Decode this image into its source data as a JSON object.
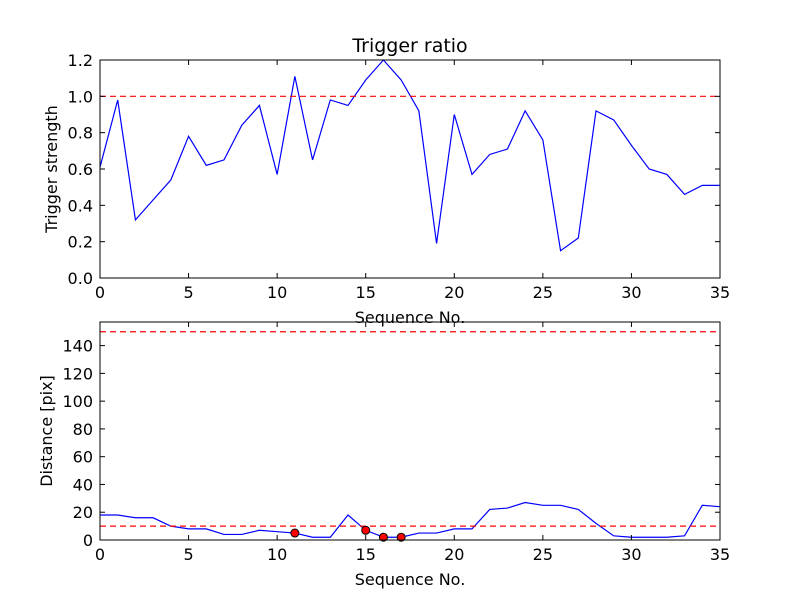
{
  "chart_data": [
    {
      "type": "line",
      "title": "Trigger ratio",
      "xlabel": "Sequence No.",
      "ylabel": "Trigger strength",
      "xlim": [
        0,
        35
      ],
      "ylim": [
        0,
        1.2
      ],
      "xticks": [
        0,
        5,
        10,
        15,
        20,
        25,
        30,
        35
      ],
      "yticks": [
        0.0,
        0.2,
        0.4,
        0.6,
        0.8,
        1.0,
        1.2
      ],
      "x": [
        0,
        1,
        2,
        3,
        4,
        5,
        6,
        7,
        8,
        9,
        10,
        11,
        12,
        13,
        14,
        15,
        16,
        17,
        18,
        19,
        20,
        21,
        22,
        23,
        24,
        25,
        26,
        27,
        28,
        29,
        30,
        31,
        32,
        33,
        34,
        35
      ],
      "series": [
        {
          "color": "#0000ff",
          "values": [
            0.61,
            0.98,
            0.32,
            0.43,
            0.54,
            0.78,
            0.62,
            0.65,
            0.84,
            0.95,
            0.57,
            1.11,
            0.65,
            0.98,
            0.95,
            1.09,
            1.2,
            1.09,
            0.92,
            0.19,
            0.9,
            0.57,
            0.68,
            0.71,
            0.92,
            0.76,
            0.15,
            0.22,
            0.92,
            0.87,
            0.73,
            0.6,
            0.57,
            0.46,
            0.51,
            0.51
          ]
        }
      ],
      "hlines": [
        {
          "y": 1.0,
          "color": "#ff0000",
          "style": "dashed"
        }
      ]
    },
    {
      "type": "line",
      "title": "",
      "xlabel": "Sequence No.",
      "ylabel": "Distance [pix]",
      "xlim": [
        0,
        35
      ],
      "ylim": [
        0,
        157
      ],
      "xticks": [
        0,
        5,
        10,
        15,
        20,
        25,
        30,
        35
      ],
      "yticks": [
        0,
        20,
        40,
        60,
        80,
        100,
        120,
        140
      ],
      "x": [
        0,
        1,
        2,
        3,
        4,
        5,
        6,
        7,
        8,
        9,
        10,
        11,
        12,
        13,
        14,
        15,
        16,
        17,
        18,
        19,
        20,
        21,
        22,
        23,
        24,
        25,
        26,
        27,
        28,
        29,
        30,
        31,
        32,
        33,
        34,
        35
      ],
      "series": [
        {
          "color": "#0000ff",
          "values": [
            18,
            18,
            16,
            16,
            10,
            8,
            8,
            4,
            4,
            7,
            6,
            5,
            2,
            2,
            18,
            7,
            2,
            2,
            5,
            5,
            8,
            8,
            22,
            23,
            27,
            25,
            25,
            22,
            12,
            3,
            2,
            2,
            2,
            3,
            25,
            24
          ]
        }
      ],
      "markers": {
        "color": "#ff0000",
        "points": [
          {
            "x": 11,
            "y": 5
          },
          {
            "x": 15,
            "y": 7
          },
          {
            "x": 16,
            "y": 2
          },
          {
            "x": 17,
            "y": 2
          }
        ]
      },
      "hlines": [
        {
          "y": 150,
          "color": "#ff0000",
          "style": "dashed"
        },
        {
          "y": 10,
          "color": "#ff0000",
          "style": "dashed"
        }
      ]
    }
  ]
}
